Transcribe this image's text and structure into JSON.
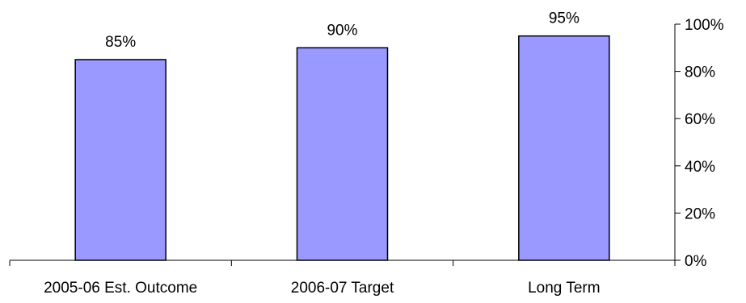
{
  "chart_data": {
    "type": "bar",
    "categories": [
      "2005-06 Est. Outcome",
      "2006-07 Target",
      "Long Term"
    ],
    "values": [
      85,
      90,
      95
    ],
    "data_labels": [
      "85%",
      "90%",
      "95%"
    ],
    "ylim": [
      0,
      100
    ],
    "yticks": [
      0,
      20,
      40,
      60,
      80,
      100
    ],
    "ytick_labels": [
      "0%",
      "20%",
      "40%",
      "60%",
      "80%",
      "100%"
    ],
    "y_axis_side": "right",
    "grid": false,
    "legend": "none",
    "bar_color": "#9999ff"
  }
}
